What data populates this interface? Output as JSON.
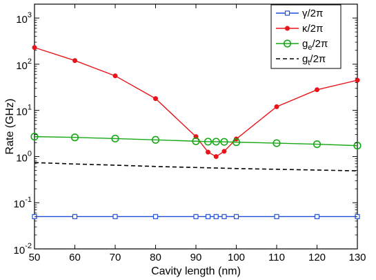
{
  "chart_data": {
    "type": "line",
    "title": "",
    "xlabel": "Cavity length (nm)",
    "ylabel": "Rate (GHz)",
    "xlim": [
      50,
      130
    ],
    "ylim": [
      0.01,
      2000
    ],
    "yscale": "log",
    "grid": false,
    "legend_position": "top-right",
    "x_ticks": [
      50,
      60,
      70,
      80,
      90,
      100,
      110,
      120,
      130
    ],
    "x_tick_labels": [
      "50",
      "60",
      "70",
      "80",
      "90",
      "100",
      "110",
      "120",
      "130"
    ],
    "y_ticks": [
      {
        "value": 0.01,
        "base": "10",
        "exp": "-2"
      },
      {
        "value": 0.1,
        "base": "10",
        "exp": "-1"
      },
      {
        "value": 1,
        "base": "10",
        "exp": "0"
      },
      {
        "value": 10,
        "base": "10",
        "exp": "1"
      },
      {
        "value": 100,
        "base": "10",
        "exp": "2"
      },
      {
        "value": 1000,
        "base": "10",
        "exp": "3"
      }
    ],
    "series": [
      {
        "name": "γ/2π",
        "color": "#1f4fd8",
        "marker": "square",
        "dash": "solid",
        "x": [
          50,
          60,
          70,
          80,
          90,
          93,
          95,
          97,
          100,
          110,
          120,
          130
        ],
        "y": [
          0.05,
          0.05,
          0.05,
          0.05,
          0.05,
          0.05,
          0.05,
          0.05,
          0.05,
          0.05,
          0.05,
          0.05
        ]
      },
      {
        "name": "κ/2π",
        "color": "#e8141b",
        "marker": "dot",
        "dash": "solid",
        "x": [
          50,
          60,
          70,
          80,
          90,
          93,
          95,
          97,
          100,
          110,
          120,
          130
        ],
        "y": [
          230,
          120,
          56,
          18,
          2.7,
          1.25,
          1.0,
          1.3,
          2.4,
          12,
          28,
          45
        ]
      },
      {
        "name": "g",
        "subscript": "e",
        "suffix": "/2π",
        "color": "#15a815",
        "marker": "circle",
        "dash": "solid",
        "x": [
          50,
          60,
          70,
          80,
          90,
          93,
          95,
          97,
          100,
          110,
          120,
          130
        ],
        "y": [
          2.7,
          2.6,
          2.45,
          2.3,
          2.15,
          2.1,
          2.1,
          2.08,
          2.05,
          1.95,
          1.85,
          1.72
        ]
      },
      {
        "name": "g",
        "subscript": "t",
        "suffix": "/2π",
        "color": "#000000",
        "marker": "none",
        "dash": "dashed",
        "x": [
          50,
          60,
          70,
          80,
          90,
          100,
          110,
          120,
          130
        ],
        "y": [
          0.74,
          0.69,
          0.65,
          0.61,
          0.58,
          0.55,
          0.53,
          0.51,
          0.49
        ]
      }
    ]
  }
}
